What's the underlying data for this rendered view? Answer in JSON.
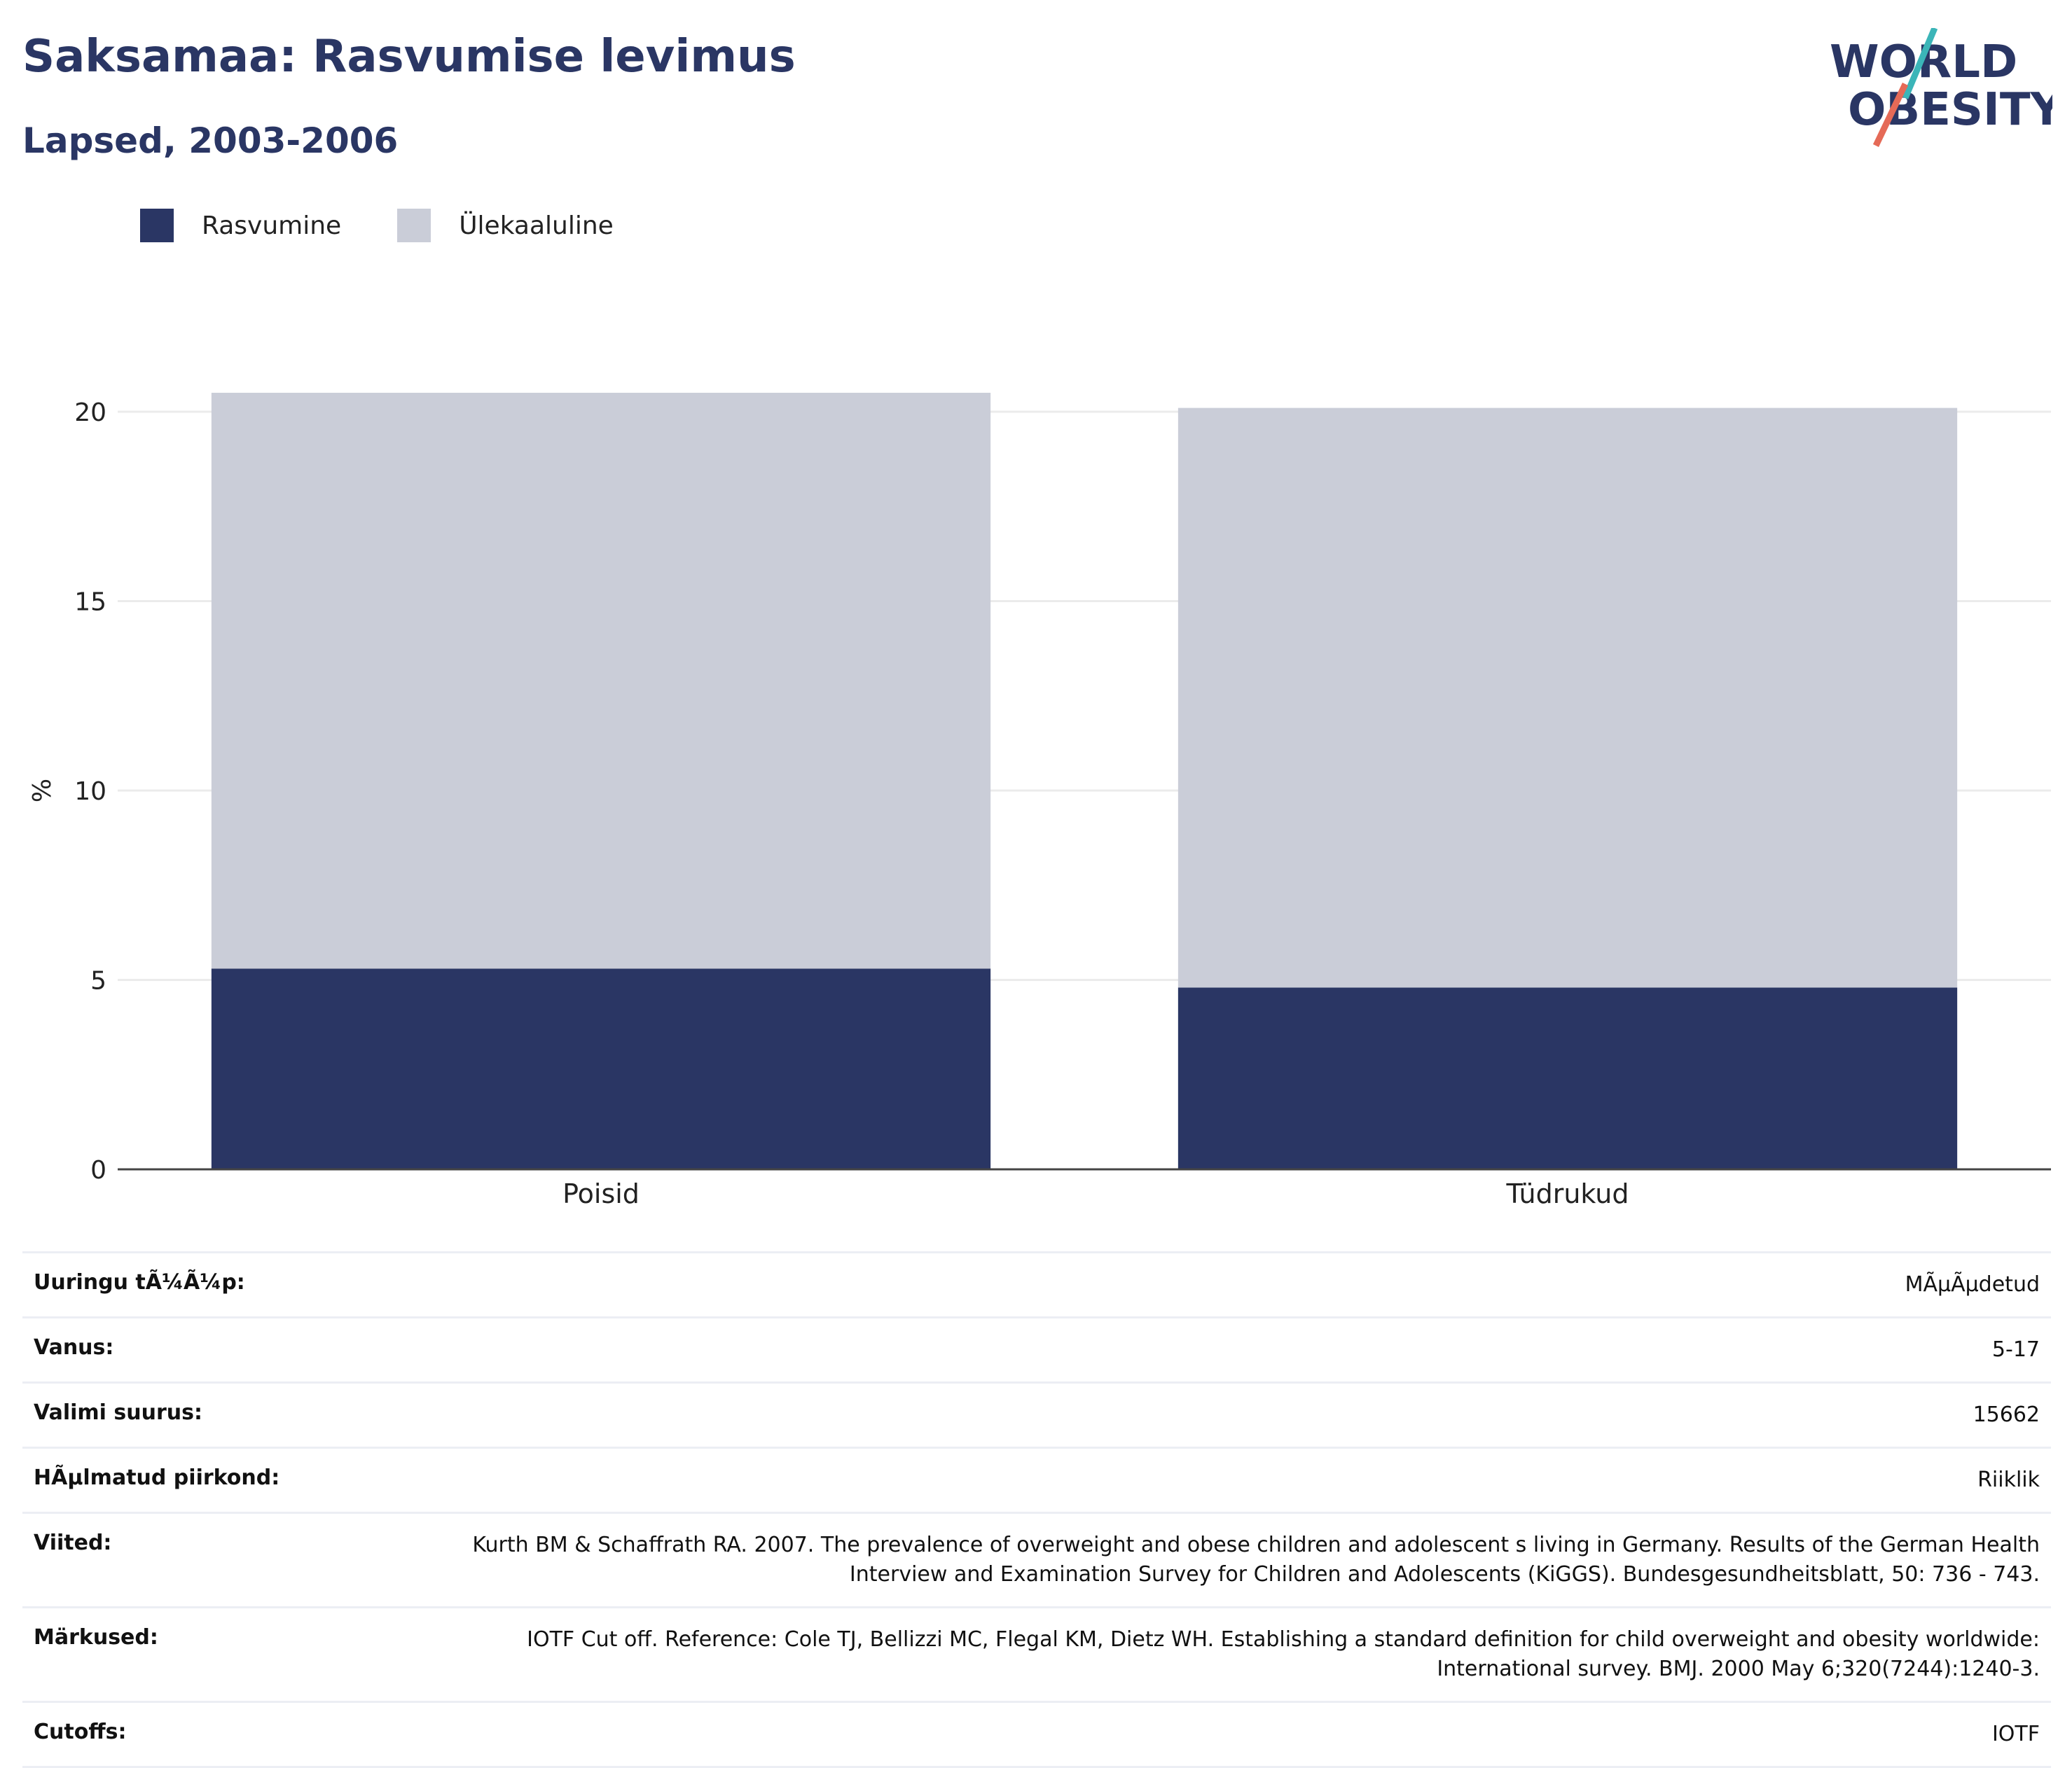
{
  "header": {
    "title": "Saksamaa: Rasvumise levimus",
    "subtitle": "Lapsed, 2003-2006"
  },
  "logo": {
    "line1": "WORLD",
    "line2": "OBESITY",
    "icon": "world-obesity-logo"
  },
  "colors": {
    "obesity": "#2a3664",
    "overweight": "#cacdd8",
    "accent_teal": "#3bb5b8",
    "accent_coral": "#e56a57"
  },
  "chart_data": {
    "type": "bar",
    "stacked": true,
    "categories": [
      "Poisid",
      "Tüdrukud"
    ],
    "series": [
      {
        "name": "Rasvumine",
        "values": [
          5.3,
          4.8
        ]
      },
      {
        "name": "Ülekaaluline",
        "values": [
          15.2,
          15.3
        ]
      }
    ],
    "ylabel": "%",
    "ylim": [
      0,
      20.5
    ],
    "yticks": [
      0,
      5,
      10,
      15,
      20
    ],
    "grid": true,
    "legend": "top-left"
  },
  "info": [
    {
      "label": "Uuringu tÃ¼Ã¼p:",
      "value": "MÃµÃµdetud"
    },
    {
      "label": "Vanus:",
      "value": "5-17"
    },
    {
      "label": "Valimi suurus:",
      "value": "15662"
    },
    {
      "label": "HÃµlmatud piirkond:",
      "value": "Riiklik"
    },
    {
      "label": "Viited:",
      "value": "Kurth BM & Schaffrath RA. 2007. The prevalence of overweight and obese children and adolescent s living in Germany. Results of the German Health Interview and Examination Survey for Children and Adolescents (KiGGS). Bundesgesundheitsblatt, 50: 736 - 743."
    },
    {
      "label": "Märkused:",
      "value": "IOTF Cut off. Reference: Cole TJ, Bellizzi MC, Flegal KM, Dietz WH. Establishing a standard definition for child overweight and obesity worldwide: International survey. BMJ. 2000 May 6;320(7244):1240-3."
    },
    {
      "label": "Cutoffs:",
      "value": "IOTF"
    }
  ]
}
